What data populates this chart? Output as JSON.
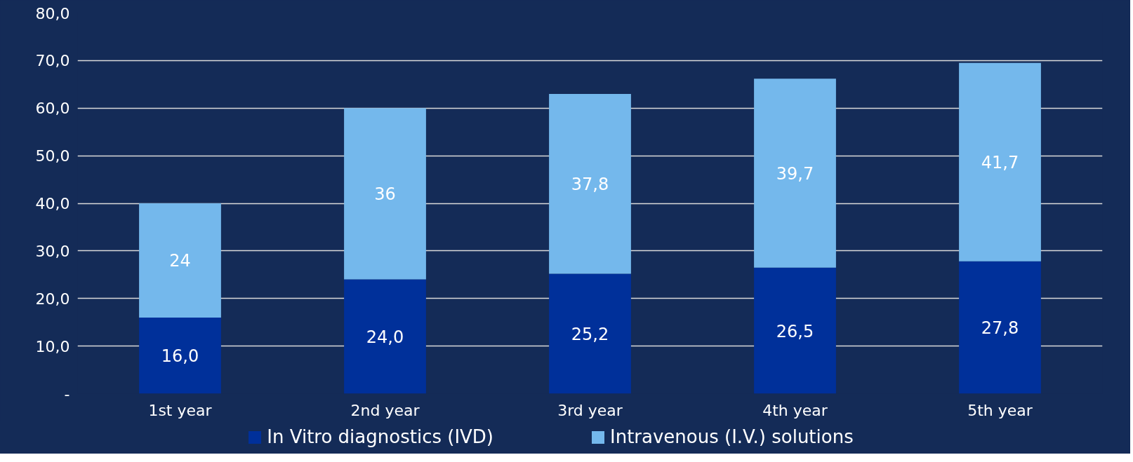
{
  "chart_data": {
    "type": "bar",
    "stacked": true,
    "categories": [
      "1st year",
      "2nd year",
      "3rd year",
      "4th year",
      "5th year"
    ],
    "series": [
      {
        "name": "In Vitro diagnostics (IVD)",
        "color": "#00309a",
        "values": [
          16.0,
          24.0,
          25.2,
          26.5,
          27.8
        ],
        "value_labels": [
          "16,0",
          "24,0",
          "25,2",
          "26,5",
          "27,8"
        ]
      },
      {
        "name": "Intravenous (I.V.) solutions",
        "color": "#74b8ec",
        "values": [
          24,
          36,
          37.8,
          39.7,
          41.7
        ],
        "value_labels": [
          "24",
          "36",
          "37,8",
          "39,7",
          "41,7"
        ]
      }
    ],
    "ylim": [
      0,
      80
    ],
    "yticks": [
      {
        "value": 0,
        "label": "-"
      },
      {
        "value": 10,
        "label": "10,0"
      },
      {
        "value": 20,
        "label": "20,0"
      },
      {
        "value": 30,
        "label": "30,0"
      },
      {
        "value": 40,
        "label": "40,0"
      },
      {
        "value": 50,
        "label": "50,0"
      },
      {
        "value": 60,
        "label": "60,0"
      },
      {
        "value": 70,
        "label": "70,0"
      },
      {
        "value": 80,
        "label": "80,0"
      }
    ],
    "grid": "y",
    "legend": "bottom"
  }
}
